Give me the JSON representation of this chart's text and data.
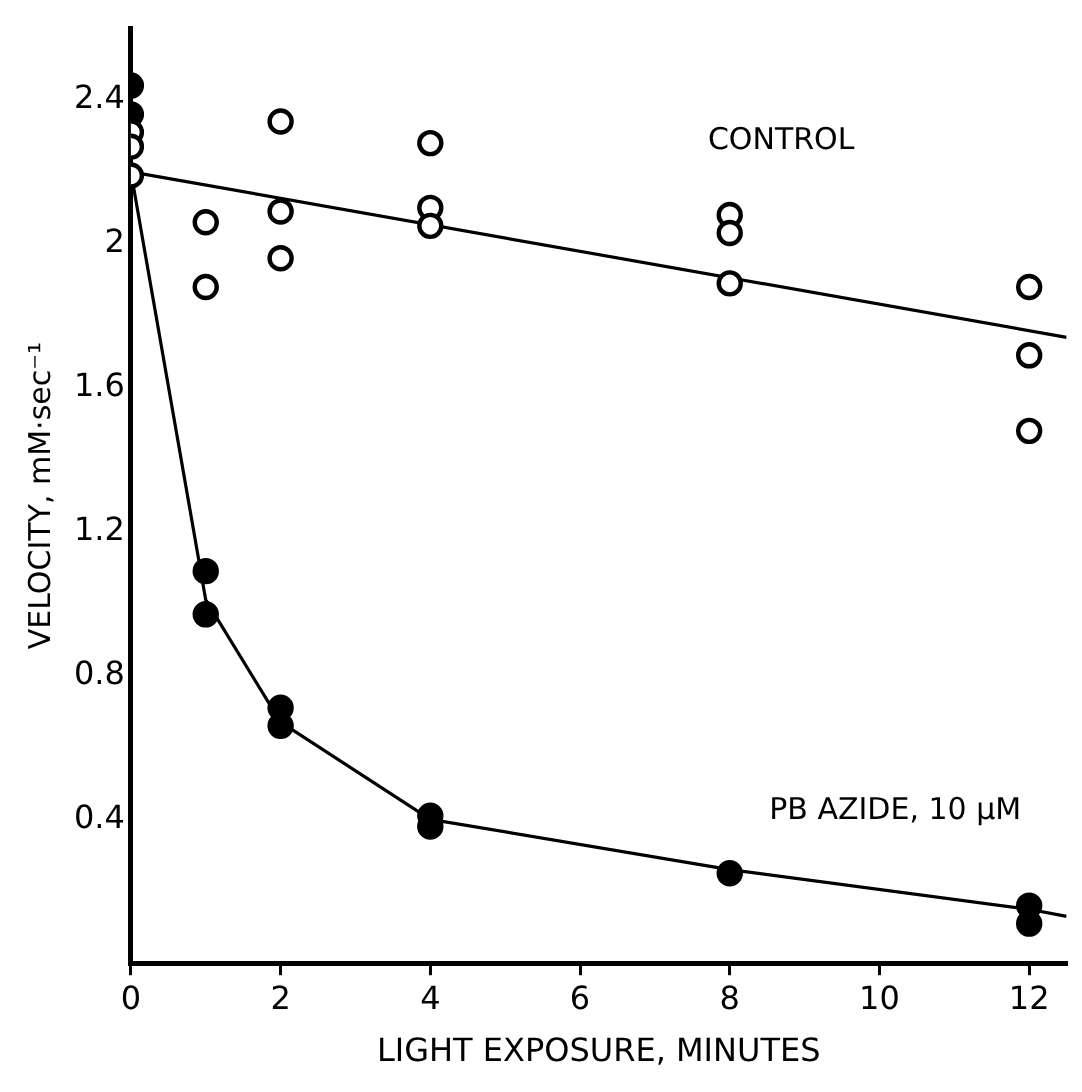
{
  "chart_data": {
    "type": "scatter",
    "xlabel": "LIGHT EXPOSURE, MINUTES",
    "ylabel": "VELOCITY, mM·sec⁻¹",
    "xlim": [
      0,
      12.5
    ],
    "xticks": [
      0,
      2,
      4,
      6,
      8,
      10,
      12
    ],
    "ylim": [
      0,
      2.6
    ],
    "yticks": [
      0.4,
      0.8,
      1.2,
      1.6,
      2.0,
      2.4
    ],
    "grid": false,
    "legend": false,
    "marker": "circle",
    "series": [
      {
        "name": "CONTROL",
        "color": "#000000",
        "x": [
          0,
          0,
          0,
          1,
          1,
          2,
          2,
          2,
          4,
          4,
          4,
          8,
          8,
          8,
          12,
          12,
          12
        ],
        "values": [
          2.31,
          2.27,
          2.19,
          2.06,
          1.88,
          2.34,
          2.09,
          1.96,
          2.28,
          2.1,
          2.05,
          2.08,
          2.03,
          1.89,
          1.88,
          1.69,
          1.48
        ]
      },
      {
        "name": "PB AZIDE, 10 μM",
        "color": "#000000",
        "x": [
          0,
          0,
          1,
          1,
          2,
          2,
          4,
          4,
          8,
          12,
          12
        ],
        "values": [
          2.44,
          2.36,
          1.09,
          0.97,
          0.71,
          0.66,
          0.41,
          0.38,
          0.25,
          0.16,
          0.11
        ]
      },
      {
        "type": "line",
        "marker": "none",
        "color": "#000000",
        "x": [
          0,
          12.5
        ],
        "values": [
          2.2,
          1.74
        ]
      },
      {
        "type": "line",
        "marker": "none",
        "color": "#000000",
        "x": [
          0,
          1,
          2,
          4,
          8,
          12,
          12.5
        ],
        "values": [
          2.2,
          1.01,
          0.67,
          0.4,
          0.26,
          0.15,
          0.13
        ]
      }
    ]
  }
}
